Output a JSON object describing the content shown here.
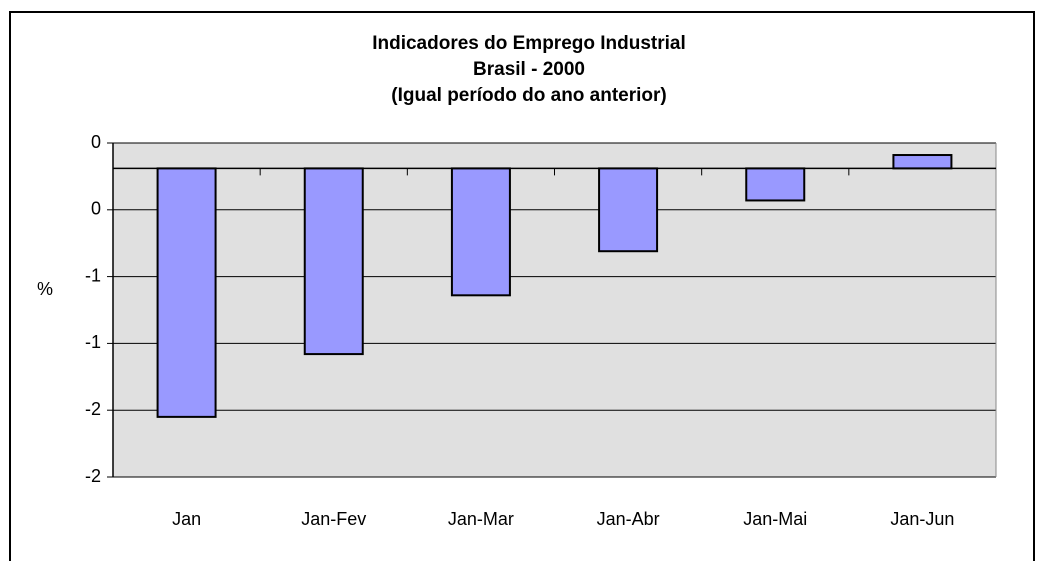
{
  "chart_data": {
    "type": "bar",
    "title": [
      "Indicadores do Emprego Industrial",
      "Brasil - 2000",
      "(Igual período do ano anterior)"
    ],
    "y_label": "%",
    "categories": [
      "Jan",
      "Jan-Fev",
      "Jan-Mar",
      "Jan-Abr",
      "Jan-Mai",
      "Jan-Jun"
    ],
    "values": [
      -1.55,
      -1.08,
      -0.64,
      -0.31,
      0.07,
      0.41
    ],
    "color": "#9999ff",
    "baseline": 0.31,
    "ylim": [
      -2,
      0.5
    ],
    "yticks": [
      {
        "value": 0.5,
        "label": "0"
      },
      0,
      {
        "value": -0.5,
        "label": "-1"
      },
      {
        "value": -1,
        "label": "-1"
      },
      {
        "value": -1.5,
        "label": "-2"
      },
      {
        "value": -2,
        "label": "-2"
      }
    ],
    "grid": true,
    "background": "#e0e0e0"
  }
}
